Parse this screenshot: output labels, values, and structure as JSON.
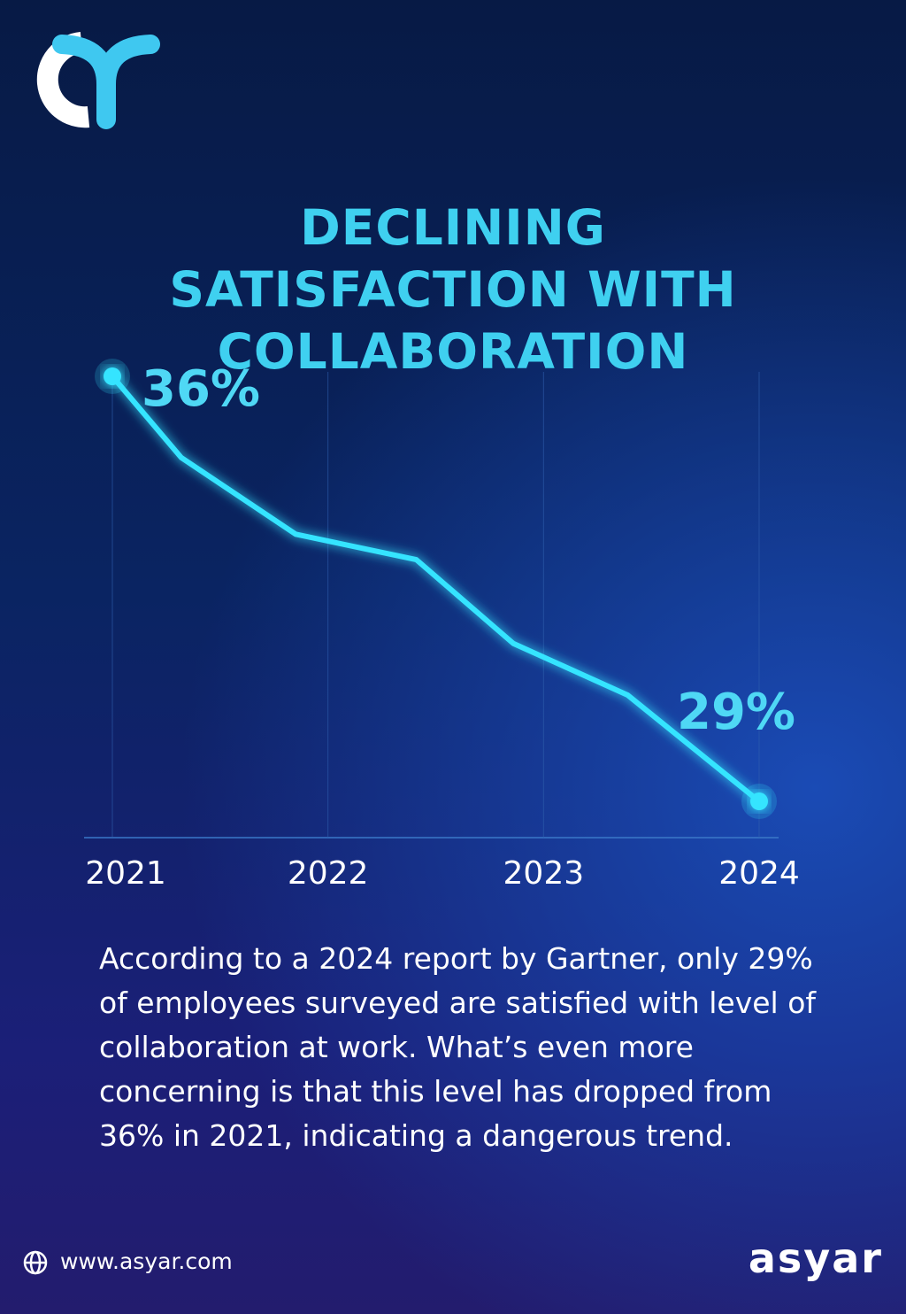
{
  "chart_data": {
    "type": "line",
    "title": "DECLINING SATISFACTION WITH COLLABORATION",
    "x": [
      2021,
      2021.32,
      2021.85,
      2022.41,
      2022.86,
      2023.39,
      2024
    ],
    "values": [
      36,
      34.66,
      33.4,
      32.98,
      31.6,
      30.75,
      29
    ],
    "value_labels": [
      "36%",
      null,
      null,
      null,
      null,
      null,
      "29%"
    ],
    "color": "#34e4ff",
    "xlim": [
      2021,
      2024
    ],
    "xticks": [
      2021,
      2022,
      2023,
      2024
    ],
    "grid": true
  },
  "description": "According to a 2024 report by Gartner, only 29% of employees surveyed are satisfied with level of collaboration at work. What’s even more concerning is that this level has dropped from 36% in 2021, indicating a dangerous trend.",
  "website": "www.asyar.com",
  "brand": "asyar"
}
